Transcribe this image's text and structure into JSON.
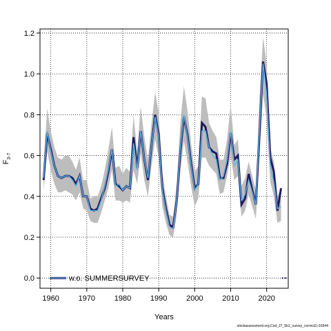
{
  "chart_data": {
    "type": "line",
    "title": "",
    "xlabel": "Years",
    "ylabel": "F",
    "ylabel_sub": "3-7",
    "xlim": [
      1957,
      2026
    ],
    "ylim": [
      -0.05,
      1.22
    ],
    "xticks": [
      1960,
      1970,
      1980,
      1990,
      2000,
      2010,
      2020
    ],
    "yticks": [
      0.0,
      0.2,
      0.4,
      0.6,
      0.8,
      1.0,
      1.2
    ],
    "ytick_labels": [
      "0.0",
      "0.2",
      "0.4",
      "0.6",
      "0.8",
      "1.0",
      "1.2"
    ],
    "grid": true,
    "legend": {
      "placement": "bottom-left",
      "entries": [
        "w.o. SUMMERSURVEY"
      ]
    },
    "colors": {
      "band": "#bdbdbd",
      "base": "#1f1a5e",
      "series": "#5ab4e6"
    },
    "base": {
      "x": [
        1958,
        1959,
        1960,
        1961,
        1962,
        1963,
        1964,
        1965,
        1966,
        1967,
        1968,
        1969,
        1970,
        1971,
        1972,
        1973,
        1974,
        1975,
        1976,
        1977,
        1978,
        1979,
        1980,
        1981,
        1982,
        1983,
        1984,
        1985,
        1986,
        1987,
        1988,
        1989,
        1990,
        1991,
        1992,
        1993,
        1994,
        1995,
        1996,
        1997,
        1998,
        1999,
        2000,
        2001,
        2002,
        2003,
        2004,
        2005,
        2006,
        2007,
        2008,
        2009,
        2010,
        2011,
        2012,
        2013,
        2014,
        2015,
        2016,
        2017,
        2018,
        2019,
        2020,
        2021,
        2022,
        2023,
        2024
      ],
      "y": [
        0.48,
        0.71,
        0.63,
        0.55,
        0.5,
        0.49,
        0.5,
        0.5,
        0.49,
        0.46,
        0.5,
        0.4,
        0.4,
        0.34,
        0.33,
        0.34,
        0.39,
        0.44,
        0.52,
        0.63,
        0.46,
        0.45,
        0.43,
        0.45,
        0.44,
        0.69,
        0.54,
        0.72,
        0.58,
        0.48,
        0.65,
        0.8,
        0.7,
        0.44,
        0.34,
        0.26,
        0.25,
        0.38,
        0.62,
        0.79,
        0.7,
        0.56,
        0.44,
        0.46,
        0.76,
        0.74,
        0.64,
        0.62,
        0.61,
        0.49,
        0.49,
        0.56,
        0.71,
        0.58,
        0.6,
        0.36,
        0.39,
        0.51,
        0.43,
        0.36,
        0.71,
        1.06,
        0.95,
        0.59,
        0.52,
        0.33,
        0.44
      ]
    },
    "series": [
      {
        "name": "w.o. SUMMERSURVEY",
        "x": [
          1958,
          1959,
          1960,
          1961,
          1962,
          1963,
          1964,
          1965,
          1966,
          1967,
          1968,
          1969,
          1970,
          1971,
          1972,
          1973,
          1974,
          1975,
          1976,
          1977,
          1978,
          1979,
          1980,
          1981,
          1982,
          1983,
          1984,
          1985,
          1986,
          1987,
          1988,
          1989,
          1990,
          1991,
          1992,
          1993,
          1994,
          1995,
          1996,
          1997,
          1998,
          1999,
          2000,
          2001,
          2002,
          2003,
          2004,
          2005,
          2006,
          2007,
          2008,
          2009,
          2010,
          2011,
          2012,
          2013,
          2014,
          2015,
          2016,
          2017,
          2018,
          2019,
          2020,
          2021,
          2022,
          2023,
          2024
        ],
        "y": [
          0.49,
          0.72,
          0.62,
          0.55,
          0.5,
          0.49,
          0.5,
          0.5,
          0.48,
          0.45,
          0.5,
          0.4,
          0.4,
          0.33,
          0.33,
          0.33,
          0.38,
          0.45,
          0.53,
          0.63,
          0.45,
          0.46,
          0.43,
          0.45,
          0.44,
          0.66,
          0.53,
          0.72,
          0.58,
          0.49,
          0.65,
          0.79,
          0.69,
          0.43,
          0.33,
          0.25,
          0.24,
          0.38,
          0.63,
          0.8,
          0.69,
          0.55,
          0.43,
          0.46,
          0.72,
          0.72,
          0.64,
          0.6,
          0.58,
          0.48,
          0.5,
          0.58,
          0.72,
          0.55,
          0.58,
          0.38,
          0.41,
          0.48,
          0.42,
          0.36,
          0.73,
          1.05,
          0.9,
          0.55,
          0.47,
          0.34,
          0.35
        ],
        "lower": [
          0.43,
          0.62,
          0.53,
          0.46,
          0.42,
          0.42,
          0.43,
          0.42,
          0.41,
          0.38,
          0.42,
          0.34,
          0.33,
          0.28,
          0.27,
          0.27,
          0.32,
          0.38,
          0.44,
          0.53,
          0.38,
          0.38,
          0.37,
          0.38,
          0.37,
          0.53,
          0.46,
          0.61,
          0.48,
          0.4,
          0.55,
          0.68,
          0.59,
          0.35,
          0.27,
          0.21,
          0.2,
          0.31,
          0.52,
          0.67,
          0.57,
          0.45,
          0.35,
          0.39,
          0.59,
          0.59,
          0.55,
          0.53,
          0.51,
          0.41,
          0.42,
          0.5,
          0.6,
          0.48,
          0.5,
          0.3,
          0.33,
          0.41,
          0.35,
          0.29,
          0.59,
          0.9,
          0.78,
          0.47,
          0.4,
          0.27,
          0.28
        ],
        "upper": [
          0.56,
          0.83,
          0.72,
          0.64,
          0.59,
          0.58,
          0.6,
          0.6,
          0.57,
          0.53,
          0.59,
          0.48,
          0.48,
          0.39,
          0.4,
          0.4,
          0.45,
          0.53,
          0.63,
          0.74,
          0.54,
          0.55,
          0.51,
          0.54,
          0.52,
          0.8,
          0.62,
          0.84,
          0.69,
          0.58,
          0.76,
          0.91,
          0.81,
          0.52,
          0.4,
          0.31,
          0.3,
          0.46,
          0.76,
          0.94,
          0.82,
          0.66,
          0.52,
          0.55,
          0.89,
          0.88,
          0.76,
          0.72,
          0.69,
          0.58,
          0.58,
          0.68,
          0.85,
          0.65,
          0.68,
          0.45,
          0.49,
          0.57,
          0.5,
          0.43,
          0.87,
          1.18,
          1.05,
          0.64,
          0.57,
          0.4,
          0.44
        ]
      }
    ],
    "tail_marks": {
      "x": [
        2025,
        2026
      ],
      "y": 0.0
    }
  },
  "footer": {
    "credit": "stockassessment.org,Cod_27_5b1_survey_correct2,r16544"
  }
}
